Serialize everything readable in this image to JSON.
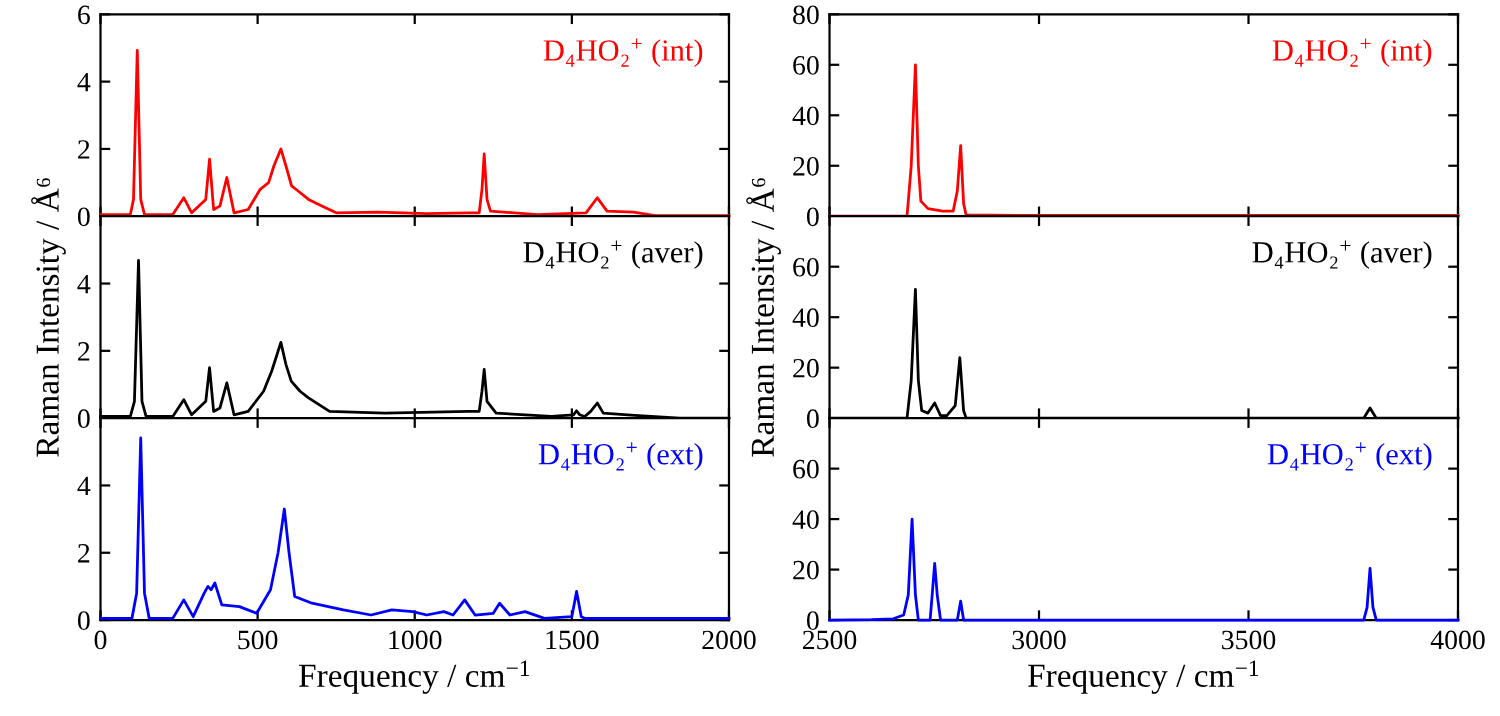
{
  "chart_data": [
    {
      "type": "line",
      "xlim": [
        0,
        2000
      ],
      "xticks": [
        0,
        500,
        1000,
        1500,
        2000
      ],
      "ylim": [
        0,
        6
      ],
      "yticks": [
        0,
        2,
        4,
        6
      ],
      "tick_labels": "y",
      "series": [
        {
          "name": "D₄HO₂$^{+}$ (int)",
          "color": "#ff0000",
          "x": [
            0,
            95,
            105,
            117,
            128,
            140,
            230,
            265,
            290,
            335,
            347,
            360,
            380,
            402,
            425,
            470,
            508,
            535,
            552,
            574,
            590,
            608,
            629,
            662,
            706,
            750,
            883,
            1038,
            1170,
            1205,
            1214,
            1221,
            1230,
            1241,
            1391,
            1545,
            1581,
            1612,
            1696,
            1766,
            2000
          ],
          "values": [
            0.05,
            0.05,
            0.5,
            4.93,
            0.5,
            0.05,
            0.05,
            0.55,
            0.1,
            0.5,
            1.7,
            0.2,
            0.3,
            1.15,
            0.1,
            0.2,
            0.8,
            1.0,
            1.5,
            2.0,
            1.5,
            0.9,
            0.75,
            0.5,
            0.3,
            0.1,
            0.12,
            0.08,
            0.1,
            0.1,
            0.8,
            1.85,
            0.5,
            0.15,
            0.05,
            0.1,
            0.55,
            0.15,
            0.12,
            0.02,
            0.02
          ]
        }
      ]
    },
    {
      "type": "line",
      "xlim": [
        2500,
        4000
      ],
      "xticks": [
        2500,
        3000,
        3500,
        4000
      ],
      "ylim": [
        0,
        80
      ],
      "yticks": [
        0,
        20,
        40,
        60,
        80
      ],
      "tick_labels": "y",
      "series": [
        {
          "name": "D₄HO₂$^{+}$ (int)",
          "color": "#ff0000",
          "x": [
            2500,
            2685,
            2695,
            2705,
            2712,
            2718,
            2735,
            2770,
            2795,
            2805,
            2813,
            2820,
            2826,
            3000,
            4000
          ],
          "values": [
            0,
            0,
            20,
            60,
            20,
            6,
            3,
            2,
            2,
            10,
            28,
            5,
            0.5,
            0.3,
            0.3
          ]
        }
      ]
    },
    {
      "type": "line",
      "xlim": [
        0,
        2000
      ],
      "xticks": [
        0,
        500,
        1000,
        1500,
        2000
      ],
      "ylim": [
        0,
        6
      ],
      "yticks": [
        0,
        2,
        4
      ],
      "tick_labels": "y",
      "ylabel": "Raman Intensity / Å⁶",
      "series": [
        {
          "name": "D₄HO₂$^{+}$ (aver)",
          "color": "#000000",
          "x": [
            0,
            95,
            108,
            121,
            132,
            145,
            230,
            265,
            290,
            335,
            347,
            360,
            380,
            402,
            425,
            470,
            519,
            545,
            574,
            590,
            607,
            635,
            662,
            729,
            905,
            1170,
            1205,
            1214,
            1221,
            1230,
            1259,
            1435,
            1505,
            1515,
            1525,
            1541,
            1560,
            1581,
            1600,
            1700,
            1844,
            2000
          ],
          "values": [
            0.05,
            0.05,
            0.5,
            4.69,
            0.5,
            0.05,
            0.05,
            0.55,
            0.1,
            0.5,
            1.5,
            0.2,
            0.3,
            1.05,
            0.1,
            0.2,
            0.8,
            1.4,
            2.25,
            1.6,
            1.1,
            0.8,
            0.6,
            0.2,
            0.15,
            0.2,
            0.2,
            0.8,
            1.45,
            0.5,
            0.15,
            0.05,
            0.1,
            0.22,
            0.1,
            0.05,
            0.2,
            0.45,
            0.15,
            0.08,
            0,
            0
          ]
        }
      ]
    },
    {
      "type": "line",
      "xlim": [
        2500,
        4000
      ],
      "xticks": [
        2500,
        3000,
        3500,
        4000
      ],
      "ylim": [
        0,
        80
      ],
      "yticks": [
        0,
        20,
        40,
        60
      ],
      "tick_labels": "y",
      "ylabel": "Raman Intensity / Å⁶",
      "series": [
        {
          "name": "D₄HO₂$^{+}$ (aver)",
          "color": "#000000",
          "x": [
            2500,
            2685,
            2695,
            2705,
            2712,
            2720,
            2735,
            2751,
            2765,
            2780,
            2800,
            2811,
            2820,
            2826,
            3775,
            3790,
            3805,
            4000
          ],
          "values": [
            0,
            0,
            15,
            51,
            15,
            3,
            2,
            6,
            1,
            1,
            5,
            24,
            3,
            0,
            0,
            4,
            0,
            0
          ]
        }
      ]
    },
    {
      "type": "line",
      "xlim": [
        0,
        2000
      ],
      "xticks": [
        0,
        500,
        1000,
        1500,
        2000
      ],
      "ylim": [
        0,
        6
      ],
      "yticks": [
        0,
        2,
        4
      ],
      "xlabel": "Frequency / cm$^{−1}$",
      "series": [
        {
          "name": "D₄HO₂$^{+}$ (ext)",
          "color": "#0000ff",
          "x": [
            0,
            100,
            115,
            128,
            140,
            155,
            230,
            265,
            295,
            330,
            342,
            352,
            364,
            386,
            442,
            497,
            541,
            565,
            585,
            600,
            618,
            673,
            773,
            861,
            927,
            994,
            1038,
            1093,
            1122,
            1159,
            1192,
            1250,
            1270,
            1303,
            1351,
            1413,
            1500,
            1515,
            1530,
            1541,
            2000
          ],
          "values": [
            0.05,
            0.05,
            0.8,
            5.41,
            0.8,
            0.05,
            0.05,
            0.6,
            0.1,
            0.8,
            1.0,
            0.9,
            1.1,
            0.45,
            0.4,
            0.2,
            0.9,
            2.0,
            3.3,
            2.0,
            0.7,
            0.5,
            0.3,
            0.15,
            0.3,
            0.25,
            0.15,
            0.25,
            0.15,
            0.6,
            0.15,
            0.2,
            0.5,
            0.15,
            0.25,
            0.05,
            0.1,
            0.85,
            0.1,
            0.05,
            0.05
          ]
        }
      ]
    },
    {
      "type": "line",
      "xlim": [
        2500,
        4000
      ],
      "xticks": [
        2500,
        3000,
        3500,
        4000
      ],
      "ylim": [
        0,
        80
      ],
      "yticks": [
        0,
        20,
        40,
        60
      ],
      "xlabel": "Frequency / cm$^{−1}$",
      "series": [
        {
          "name": "D₄HO₂$^{+}$ (ext)",
          "color": "#0000ff",
          "x": [
            2500,
            2600,
            2652,
            2677,
            2688,
            2697,
            2705,
            2712,
            2740,
            2745,
            2751,
            2757,
            2765,
            2805,
            2813,
            2820,
            3775,
            3783,
            3790,
            3797,
            3805,
            4000
          ],
          "values": [
            0,
            0.2,
            0.5,
            2,
            10,
            40,
            10,
            0,
            0,
            10,
            22.5,
            10,
            0,
            0,
            7.5,
            0,
            0,
            5,
            20.5,
            5,
            0,
            0
          ]
        }
      ]
    }
  ]
}
